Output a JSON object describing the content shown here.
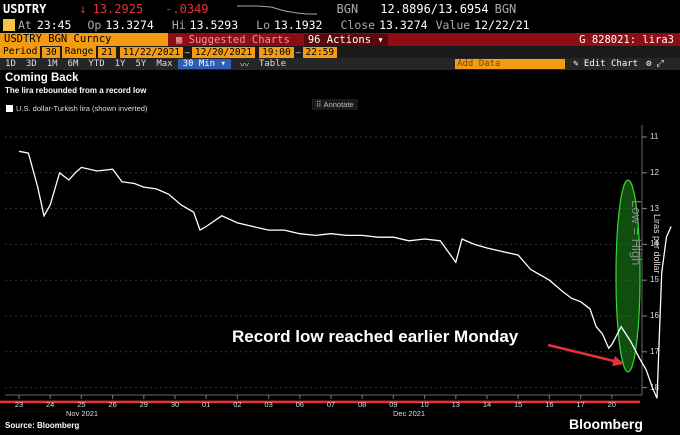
{
  "header": {
    "ticker": "USDTRY",
    "arrow": "↓",
    "last": "13.2925",
    "change": "-.0349",
    "source_tag": "BGN",
    "bid_ask": "12.8896/13.6954",
    "source_tag2": "BGN",
    "at_label": "At",
    "time": "23:45",
    "op_label": "Op",
    "op": "13.3274",
    "hi_label": "Hi",
    "hi": "13.5293",
    "lo_label": "Lo",
    "lo": "13.1932",
    "close_label": "Close",
    "close": "13.3274",
    "value_label": "Value",
    "value_date": "12/22/21"
  },
  "toolbar": {
    "security": "USDTRY BGN Curncy",
    "suggested": "Suggested Charts",
    "actions": "Actions",
    "code": "G 828021: lira3",
    "period_label": "Period",
    "period_value": "30",
    "range_label": "Range",
    "range_value": "21",
    "date_from": "11/22/2021",
    "date_to": "12/20/2021",
    "time_from": "19:00",
    "time_to": "22:59",
    "periods": [
      "1D",
      "3D",
      "1M",
      "6M",
      "YTD",
      "1Y",
      "5Y",
      "Max"
    ],
    "interval": "30 Min",
    "table_label": "Table",
    "add_data": "Add Data",
    "edit_chart": "Edit Chart"
  },
  "chart_text": {
    "title": "Coming Back",
    "subtitle": "The lira rebounded from a record low",
    "legend": "U.S. dollar-Turkish lira (shown inverted)",
    "annotate": "Annotate",
    "y_axis_title": "Liras per dollar",
    "low_high": "Low = High",
    "callout": "Record low reached earlier Monday",
    "source": "Source: Bloomberg",
    "brand": "Bloomberg"
  },
  "chart_data": {
    "type": "line",
    "title": "Coming Back",
    "subtitle": "The lira rebounded from a record low",
    "ylabel": "Liras per dollar",
    "y_inverted": true,
    "ylim": [
      11,
      18.5
    ],
    "yticks": [
      11,
      12,
      13,
      14,
      15,
      16,
      17,
      18
    ],
    "xticks": [
      "23",
      "24",
      "25",
      "26",
      "29",
      "30",
      "01",
      "02",
      "03",
      "06",
      "07",
      "08",
      "09",
      "10",
      "13",
      "14",
      "15",
      "16",
      "17",
      "20"
    ],
    "months": [
      "Nov 2021",
      "Dec 2021"
    ],
    "series": [
      {
        "name": "U.S. dollar-Turkish lira (shown inverted)",
        "points": [
          [
            0,
            11.4
          ],
          [
            0.3,
            11.45
          ],
          [
            0.6,
            12.4
          ],
          [
            0.8,
            13.2
          ],
          [
            1.0,
            12.9
          ],
          [
            1.3,
            12.0
          ],
          [
            1.6,
            12.2
          ],
          [
            1.8,
            12.0
          ],
          [
            2.0,
            11.85
          ],
          [
            2.5,
            11.95
          ],
          [
            3.0,
            11.9
          ],
          [
            3.3,
            12.25
          ],
          [
            3.7,
            12.3
          ],
          [
            4.0,
            12.4
          ],
          [
            4.4,
            12.45
          ],
          [
            4.8,
            12.6
          ],
          [
            5.2,
            12.9
          ],
          [
            5.6,
            13.1
          ],
          [
            5.8,
            13.6
          ],
          [
            6.0,
            13.5
          ],
          [
            6.5,
            13.2
          ],
          [
            7.0,
            13.4
          ],
          [
            7.5,
            13.5
          ],
          [
            8.0,
            13.6
          ],
          [
            8.5,
            13.6
          ],
          [
            9.0,
            13.7
          ],
          [
            9.5,
            13.75
          ],
          [
            10.0,
            13.7
          ],
          [
            10.5,
            13.75
          ],
          [
            11.0,
            13.75
          ],
          [
            11.5,
            13.8
          ],
          [
            12.0,
            13.8
          ],
          [
            12.5,
            13.9
          ],
          [
            13.0,
            13.85
          ],
          [
            13.5,
            13.9
          ],
          [
            14.0,
            14.5
          ],
          [
            14.2,
            13.85
          ],
          [
            14.6,
            14.0
          ],
          [
            15.0,
            14.1
          ],
          [
            15.5,
            14.2
          ],
          [
            16.0,
            14.3
          ],
          [
            16.4,
            14.7
          ],
          [
            16.8,
            14.9
          ],
          [
            17.0,
            15.0
          ],
          [
            17.4,
            15.3
          ],
          [
            17.7,
            15.5
          ],
          [
            18.0,
            15.6
          ],
          [
            18.3,
            15.8
          ],
          [
            18.5,
            16.3
          ],
          [
            18.7,
            16.5
          ],
          [
            18.9,
            16.9
          ],
          [
            19.0,
            16.8
          ],
          [
            19.3,
            16.3
          ],
          [
            19.6,
            16.7
          ],
          [
            19.9,
            17.2
          ],
          [
            20.1,
            17.5
          ],
          [
            20.3,
            18.0
          ],
          [
            20.45,
            18.3
          ],
          [
            20.6,
            14.8
          ],
          [
            20.75,
            13.8
          ],
          [
            20.9,
            13.5
          ]
        ]
      }
    ],
    "reference_line": 18.4,
    "colors": {
      "line": "#ffffff",
      "record_line": "#e8303a",
      "ellipse": "#1e8e1e"
    }
  }
}
